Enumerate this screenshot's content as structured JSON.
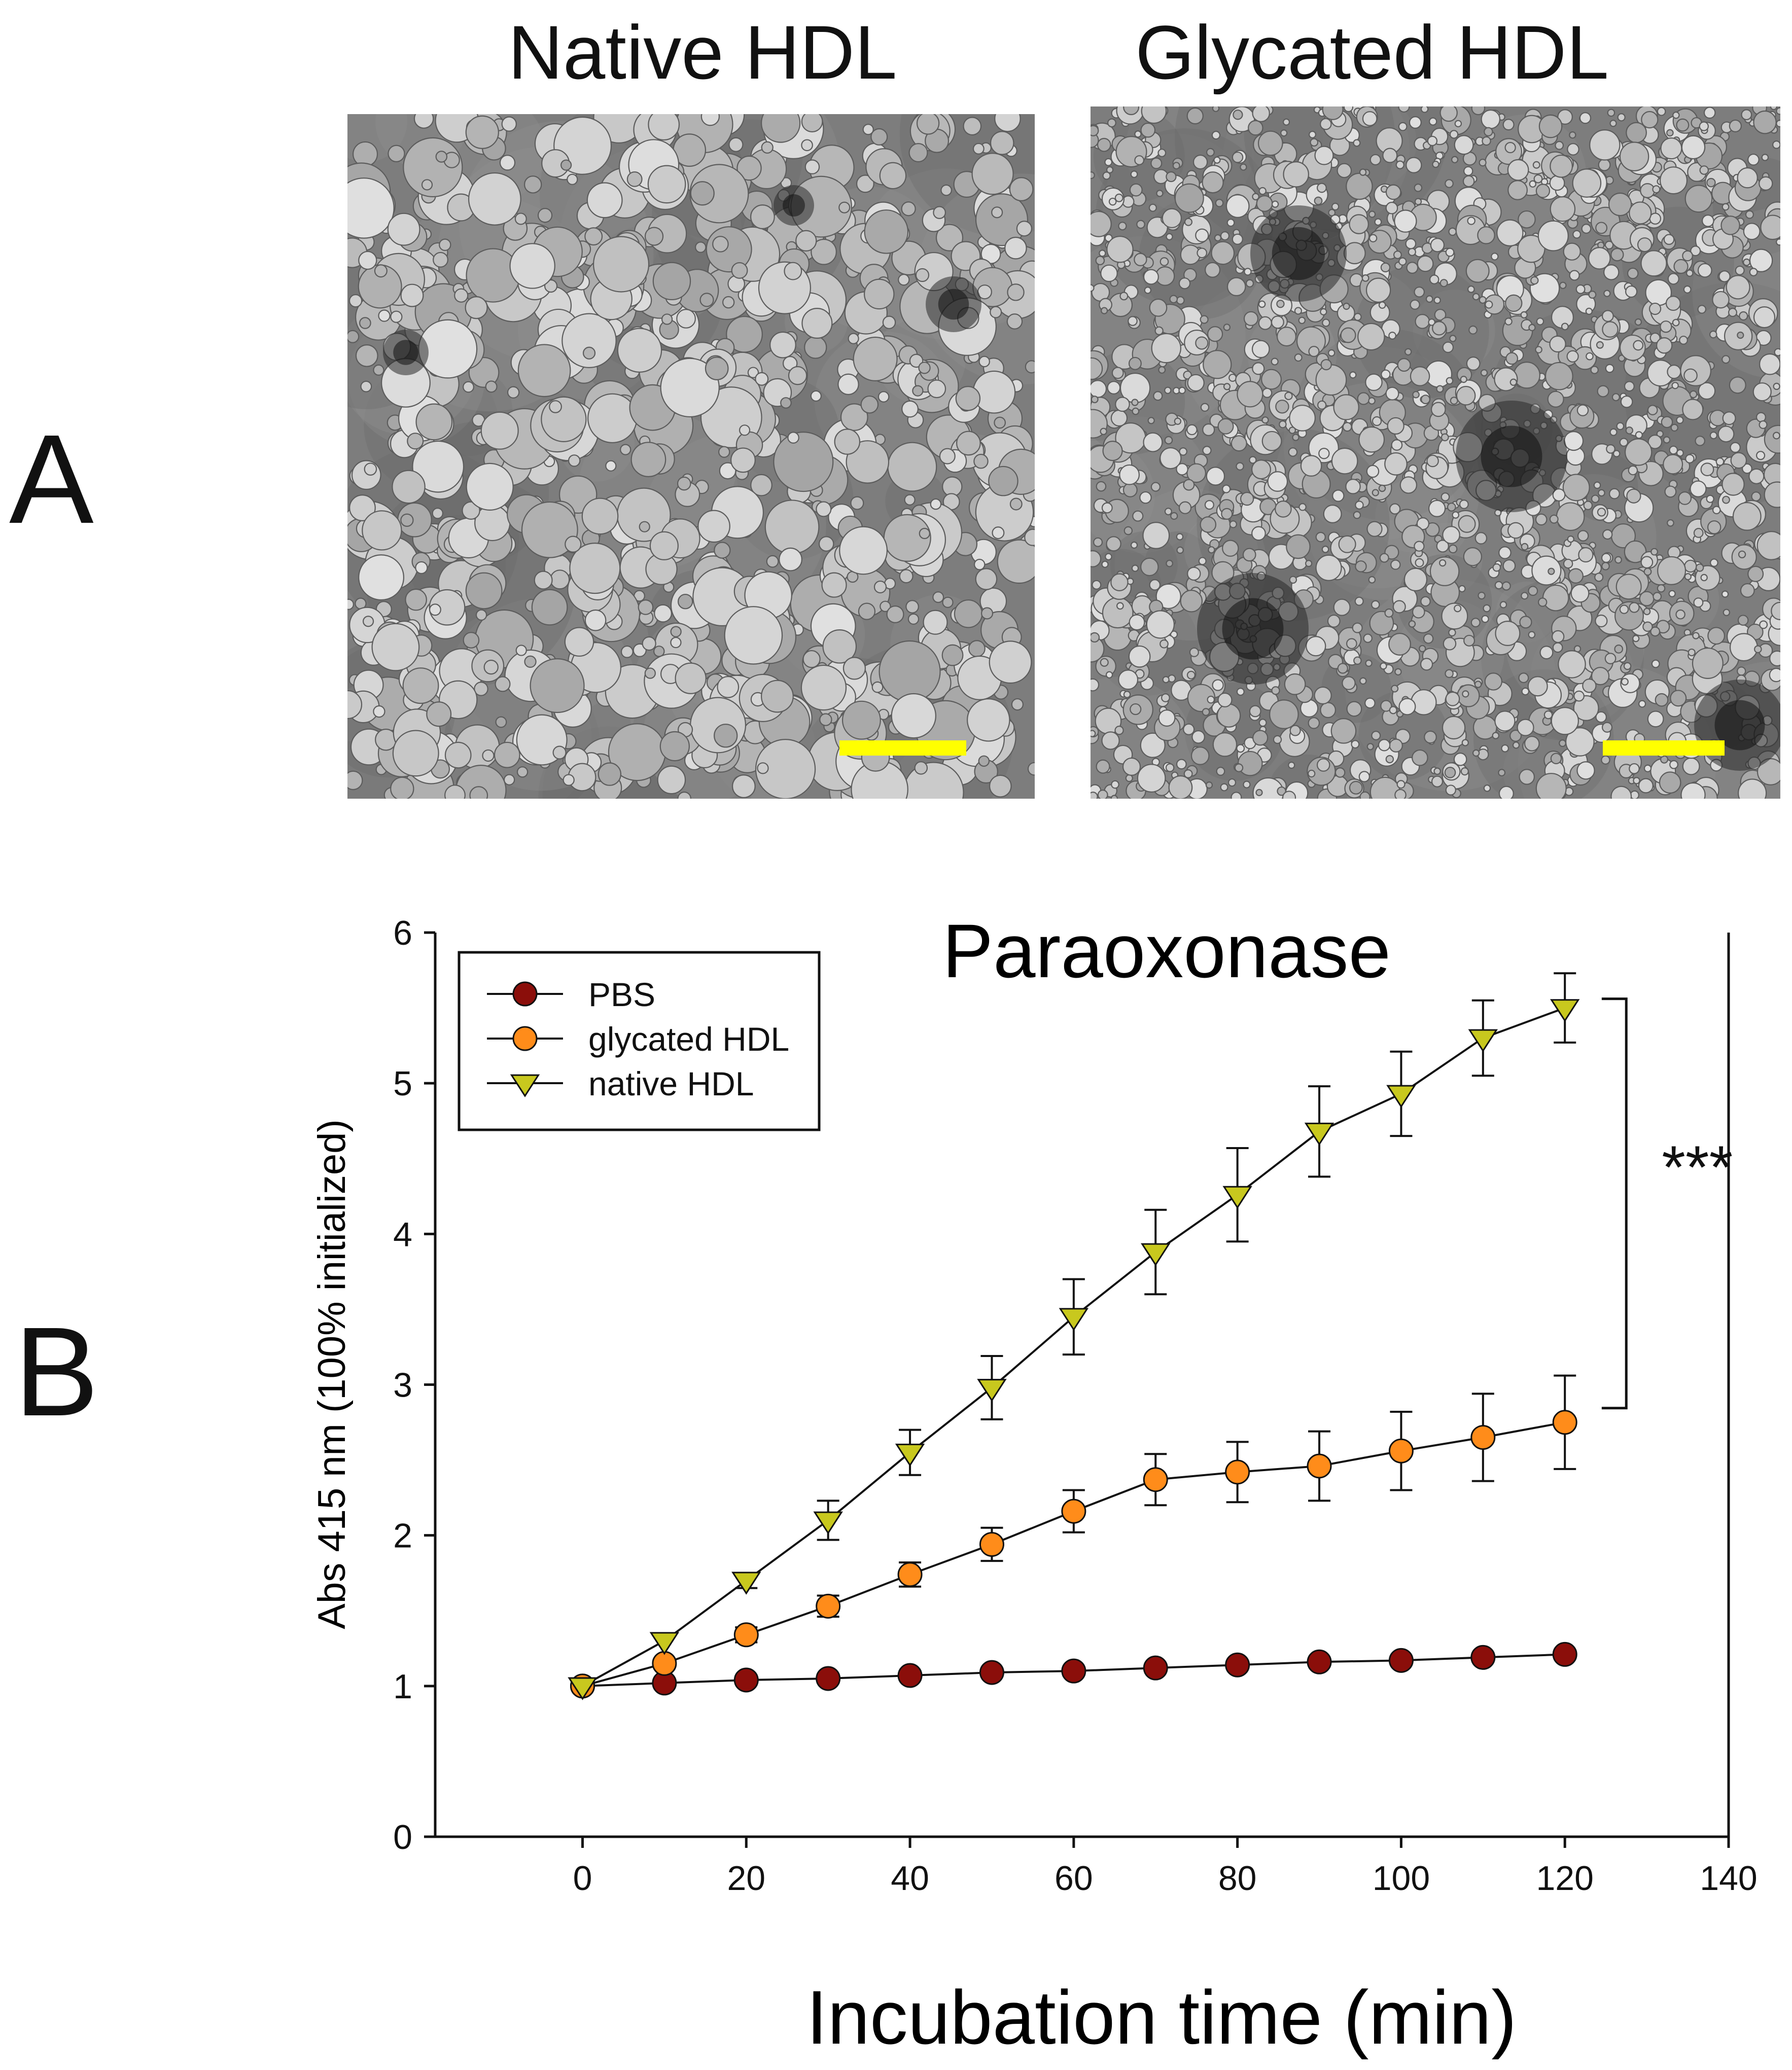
{
  "panel_a": {
    "letter": "A",
    "left_title": "Native HDL",
    "right_title": "Glycated HDL",
    "scalebar_color": "#ffff00"
  },
  "panel_b": {
    "letter": "B"
  },
  "chart_data": {
    "type": "line",
    "title": "Paraoxonase",
    "xlabel": "Incubation time (min)",
    "ylabel": "Abs 415 nm (100% initialized)",
    "xlim": [
      -18,
      140
    ],
    "ylim": [
      0,
      6
    ],
    "xticks": [
      0,
      20,
      40,
      60,
      80,
      100,
      120,
      140
    ],
    "yticks": [
      0,
      1,
      2,
      3,
      4,
      5,
      6
    ],
    "grid": false,
    "legend_position": "top-left",
    "significance": "***",
    "series": [
      {
        "name": "PBS",
        "marker": "circle",
        "color": "#8b0e0a",
        "x": [
          0,
          10,
          20,
          30,
          40,
          50,
          60,
          70,
          80,
          90,
          100,
          110,
          120
        ],
        "y": [
          1.0,
          1.02,
          1.04,
          1.05,
          1.07,
          1.09,
          1.1,
          1.12,
          1.14,
          1.16,
          1.17,
          1.19,
          1.21
        ],
        "err": [
          0,
          0,
          0,
          0,
          0,
          0,
          0,
          0,
          0,
          0,
          0,
          0,
          0
        ]
      },
      {
        "name": "glycated HDL",
        "marker": "circle",
        "color": "#ff8c1a",
        "x": [
          0,
          10,
          20,
          30,
          40,
          50,
          60,
          70,
          80,
          90,
          100,
          110,
          120
        ],
        "y": [
          1.0,
          1.15,
          1.34,
          1.53,
          1.74,
          1.94,
          2.16,
          2.37,
          2.42,
          2.46,
          2.56,
          2.65,
          2.75
        ],
        "err": [
          0,
          0,
          0.05,
          0.07,
          0.08,
          0.11,
          0.14,
          0.17,
          0.2,
          0.23,
          0.26,
          0.29,
          0.31
        ]
      },
      {
        "name": "native HDL",
        "marker": "triangle-down",
        "color": "#c8c81e",
        "x": [
          0,
          10,
          20,
          30,
          40,
          50,
          60,
          70,
          80,
          90,
          100,
          110,
          120
        ],
        "y": [
          1.0,
          1.3,
          1.7,
          2.1,
          2.55,
          2.98,
          3.45,
          3.88,
          4.26,
          4.68,
          4.93,
          5.3,
          5.5
        ],
        "err": [
          0,
          0,
          0.05,
          0.13,
          0.15,
          0.21,
          0.25,
          0.28,
          0.31,
          0.3,
          0.28,
          0.25,
          0.23
        ]
      }
    ]
  }
}
